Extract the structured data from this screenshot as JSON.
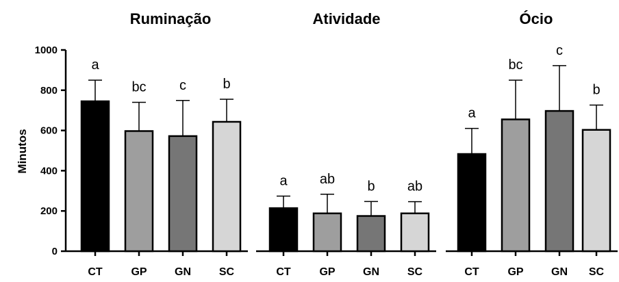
{
  "chart_data": {
    "type": "bar",
    "ylabel": "Minutos",
    "ylim": [
      0,
      1000
    ],
    "yticks": [
      0,
      200,
      400,
      600,
      800,
      1000
    ],
    "categories": [
      "CT",
      "GP",
      "GN",
      "SC"
    ],
    "colors": [
      "#000000",
      "#9e9e9e",
      "#767676",
      "#d6d6d6"
    ],
    "error_bars": "upper only",
    "groups": [
      {
        "title": "Ruminação",
        "values": [
          745,
          597,
          572,
          643
        ],
        "error": [
          105,
          143,
          177,
          112
        ],
        "labels": [
          "a",
          "bc",
          "c",
          "b"
        ]
      },
      {
        "title": "Atividade",
        "values": [
          214,
          188,
          175,
          188
        ],
        "error": [
          60,
          95,
          72,
          58
        ],
        "labels": [
          "a",
          "ab",
          "b",
          "ab"
        ]
      },
      {
        "title": "Ócio",
        "values": [
          483,
          655,
          697,
          603
        ],
        "error": [
          127,
          195,
          225,
          123
        ],
        "labels": [
          "a",
          "bc",
          "c",
          "b"
        ]
      }
    ]
  }
}
